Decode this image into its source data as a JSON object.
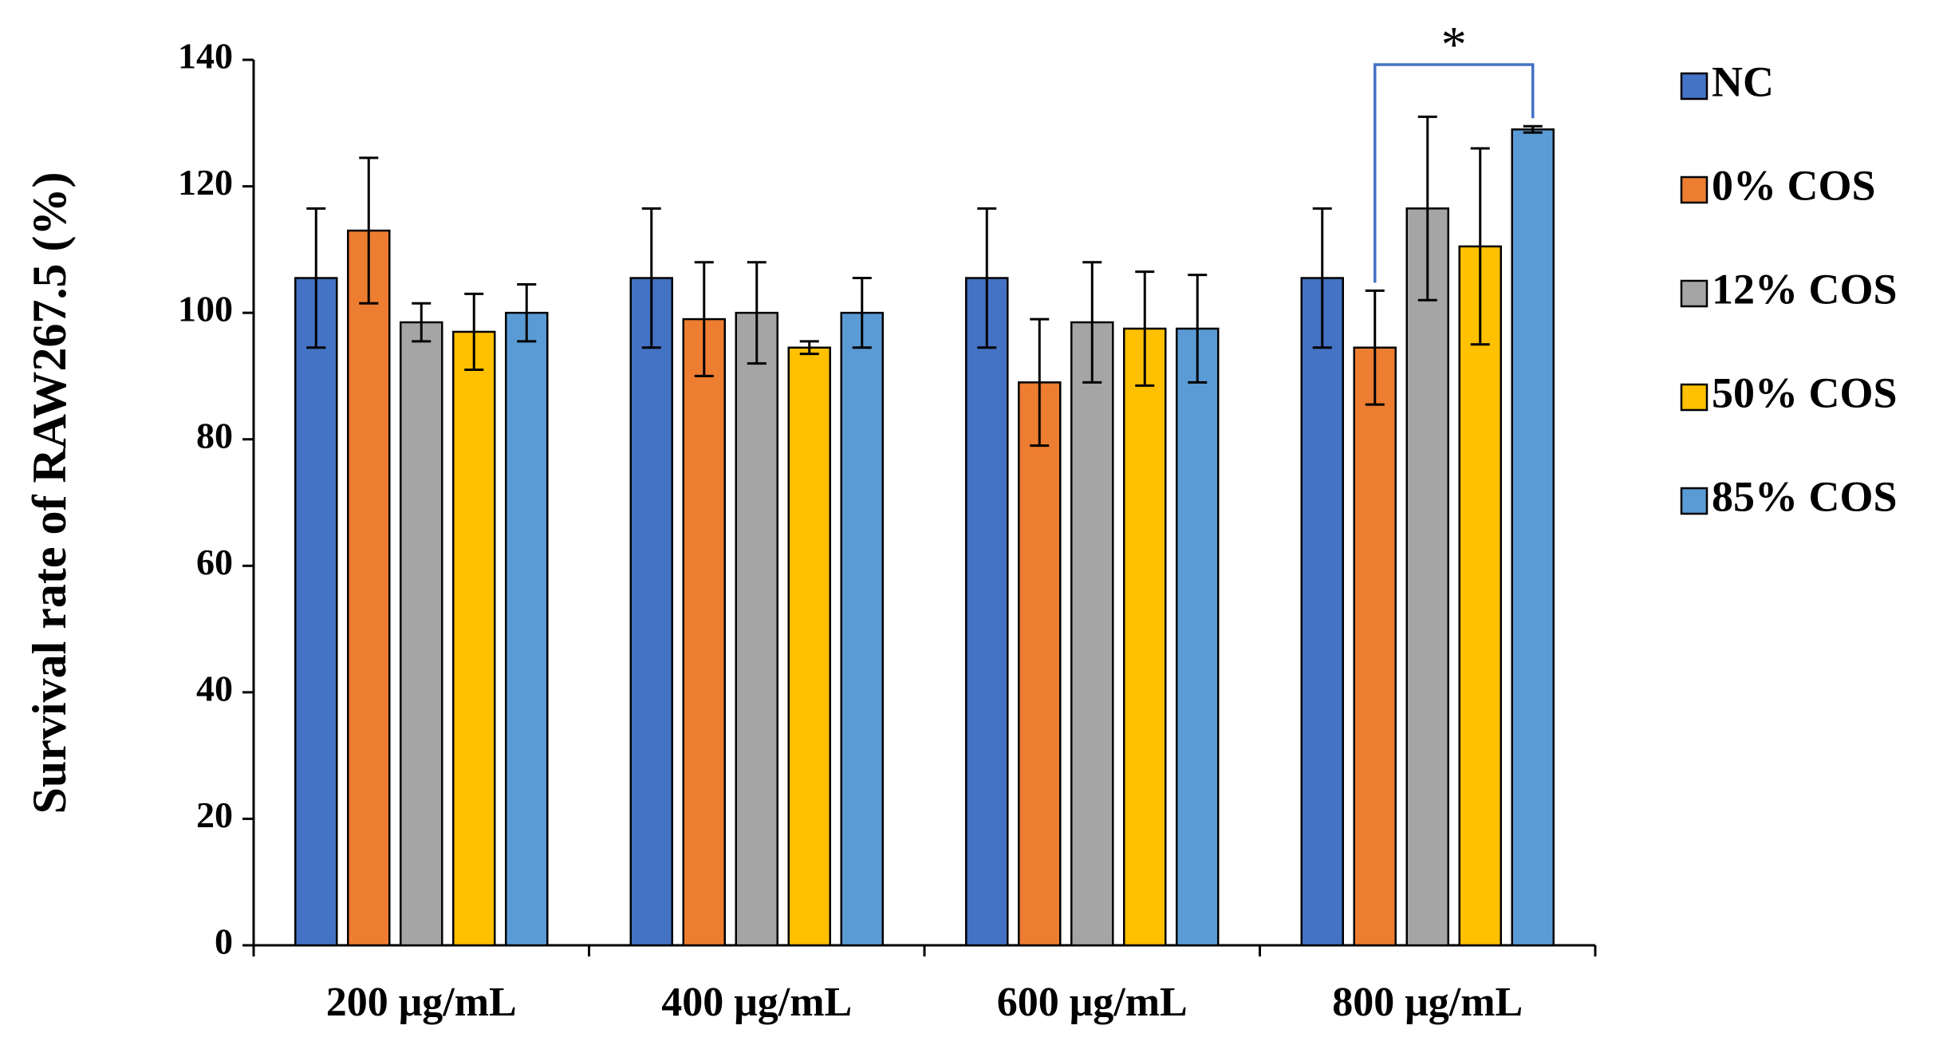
{
  "chart_data": {
    "type": "bar",
    "title": "",
    "xlabel": "",
    "ylabel": "Survival rate of  RAW267.5 (%)",
    "ylim": [
      0,
      140
    ],
    "yticks": [
      0,
      20,
      40,
      60,
      80,
      100,
      120,
      140
    ],
    "grid": false,
    "legend_position": "right",
    "categories": [
      "200 μg/mL",
      "400 μg/mL",
      "600 μg/mL",
      "800 μg/mL"
    ],
    "series": [
      {
        "name": "NC",
        "color": "#4472C4",
        "values": [
          105.5,
          105.5,
          105.5,
          105.5
        ],
        "errors": [
          11,
          11,
          11,
          11
        ]
      },
      {
        "name": "0% COS",
        "color": "#ED7D31",
        "values": [
          113,
          99,
          89,
          94.5
        ],
        "errors": [
          11.5,
          9,
          10,
          9
        ]
      },
      {
        "name": "12% COS",
        "color": "#A5A5A5",
        "values": [
          98.5,
          100,
          98.5,
          116.5
        ],
        "errors": [
          3,
          8,
          9.5,
          14.5
        ]
      },
      {
        "name": "50% COS",
        "color": "#FFC000",
        "values": [
          97,
          94.5,
          97.5,
          110.5
        ],
        "errors": [
          6,
          1,
          9,
          15.5
        ]
      },
      {
        "name": "85% COS",
        "color": "#5B9BD5",
        "values": [
          100,
          100,
          97.5,
          129
        ],
        "errors": [
          4.5,
          5.5,
          8.5,
          0.5
        ]
      }
    ],
    "annotations": [
      {
        "text": "*",
        "category": "800 μg/mL",
        "from_series": "0% COS",
        "to_series": "85% COS",
        "bracket_color": "#4472C4"
      }
    ]
  }
}
